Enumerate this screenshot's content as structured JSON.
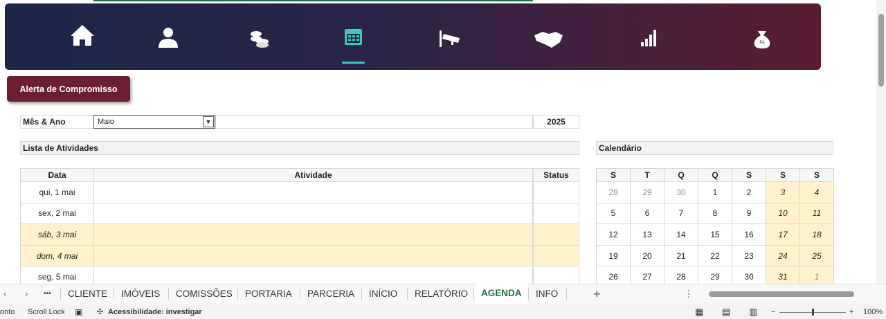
{
  "button": "Alerta de Compromisso",
  "filter": {
    "label": "Mês & Ano",
    "month": "Maio",
    "year": "2025"
  },
  "activities": {
    "title": "Lista de Atividades",
    "headers": [
      "Data",
      "Atividade",
      "Status"
    ],
    "rows": [
      {
        "date": "qui, 1 mai",
        "highlight": false
      },
      {
        "date": "sex, 2 mai",
        "highlight": false
      },
      {
        "date": "sáb, 3 mai",
        "highlight": true
      },
      {
        "date": "dom, 4 mai",
        "highlight": true
      },
      {
        "date": "seg, 5 mai",
        "highlight": false
      }
    ]
  },
  "calendar": {
    "title": "Calendário",
    "headers": [
      "S",
      "T",
      "Q",
      "Q",
      "S",
      "S",
      "S"
    ],
    "weeks": [
      [
        28,
        29,
        30,
        1,
        2,
        3,
        4
      ],
      [
        5,
        6,
        7,
        8,
        9,
        10,
        11
      ],
      [
        12,
        13,
        14,
        15,
        16,
        17,
        18
      ],
      [
        19,
        20,
        21,
        22,
        23,
        24,
        25
      ],
      [
        26,
        27,
        28,
        29,
        30,
        31,
        1
      ]
    ]
  },
  "tabs": {
    "more": "•••",
    "items": [
      "CLIENTE",
      "IMÓVEIS",
      "COMISSÕES",
      "PORTARIA",
      "PARCERIA",
      "INÍCIO",
      "RELATÓRIO",
      "AGENDA",
      "INFO"
    ],
    "active": 7
  },
  "status_bar": {
    "ready": "onto",
    "scroll_lock": "Scroll Lock",
    "accessibility": "Acessibilidade: investigar",
    "zoom": "100%"
  }
}
